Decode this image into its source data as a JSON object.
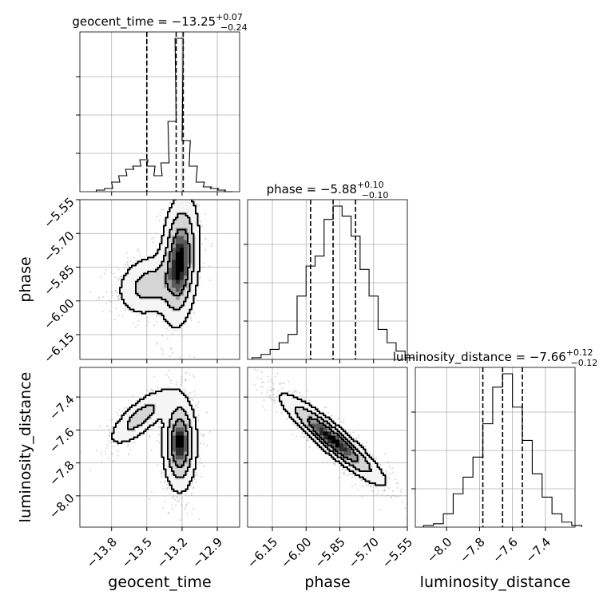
{
  "chart_data": {
    "type": "corner",
    "parameters": [
      {
        "name": "geocent_time",
        "median": -13.25,
        "plus": "0.07",
        "minus": "0.24",
        "title_main": "geocent_time = −13.25",
        "title_sup": "+0.07",
        "title_sub": "−0.24",
        "range": [
          -14.07,
          -12.71
        ],
        "ticks": [
          -13.8,
          -13.5,
          -13.2,
          -12.9
        ],
        "tick_labels": [
          "−13.8",
          "−13.5",
          "−13.2",
          "−12.9"
        ],
        "quantile_lines": [
          -13.5,
          -13.25,
          -13.19
        ],
        "axis_label": "geocent_time"
      },
      {
        "name": "phase",
        "median": -5.88,
        "plus": "0.10",
        "minus": "0.10",
        "title_main": "phase = −5.88",
        "title_sup": "+0.10",
        "title_sub": "−0.10",
        "range": [
          -6.26,
          -5.55
        ],
        "ticks": [
          -6.15,
          -6.0,
          -5.85,
          -5.7,
          -5.55
        ],
        "tick_labels": [
          "−6.15",
          "−6.00",
          "−5.85",
          "−5.70",
          "−5.55"
        ],
        "quantile_lines": [
          -5.98,
          -5.88,
          -5.78
        ],
        "axis_label": "phase"
      },
      {
        "name": "luminosity_distance",
        "median": -7.66,
        "plus": "0.12",
        "minus": "0.12",
        "title_main": "luminosity_distance = −7.66",
        "title_sup": "+0.12",
        "title_sub": "−0.12",
        "range": [
          -8.19,
          -7.22
        ],
        "ticks": [
          -8.0,
          -7.8,
          -7.6,
          -7.4
        ],
        "tick_labels": [
          "−8.0",
          "−7.8",
          "−7.6",
          "−7.4"
        ],
        "quantile_lines": [
          -7.78,
          -7.66,
          -7.54
        ],
        "axis_label": "luminosity_distance"
      }
    ],
    "histograms": [
      {
        "param": "geocent_time",
        "bins": [
          -13.93,
          -13.86,
          -13.8,
          -13.74,
          -13.68,
          -13.62,
          -13.56,
          -13.5,
          -13.44,
          -13.38,
          -13.32,
          -13.26,
          -13.2,
          -13.14,
          -13.08,
          -13.02,
          -12.96,
          -12.9,
          -12.84
        ],
        "counts": [
          0.01,
          0.02,
          0.06,
          0.1,
          0.14,
          0.16,
          0.2,
          0.16,
          0.1,
          0.18,
          0.44,
          0.96,
          0.32,
          0.16,
          0.06,
          0.03,
          0.02,
          0.01,
          0
        ]
      },
      {
        "param": "phase",
        "bins": [
          -6.24,
          -6.2,
          -6.16,
          -6.12,
          -6.08,
          -6.04,
          -6.0,
          -5.96,
          -5.92,
          -5.88,
          -5.84,
          -5.8,
          -5.76,
          -5.72,
          -5.68,
          -5.64,
          -5.6,
          -5.56
        ],
        "counts": [
          0.01,
          0.03,
          0.06,
          0.1,
          0.15,
          0.38,
          0.56,
          0.62,
          0.84,
          0.92,
          0.86,
          0.74,
          0.54,
          0.38,
          0.18,
          0.1,
          0.05,
          0.01
        ]
      },
      {
        "param": "luminosity_distance",
        "bins": [
          -8.14,
          -8.08,
          -8.02,
          -7.96,
          -7.9,
          -7.84,
          -7.78,
          -7.72,
          -7.66,
          -7.6,
          -7.54,
          -7.48,
          -7.42,
          -7.36,
          -7.3,
          -7.24
        ],
        "counts": [
          0.01,
          0.02,
          0.08,
          0.2,
          0.3,
          0.42,
          0.62,
          0.84,
          0.92,
          0.72,
          0.52,
          0.32,
          0.18,
          0.08,
          0.03,
          0.01
        ]
      }
    ],
    "scatter_2d": [
      {
        "x": "geocent_time",
        "y": "phase",
        "blobs": [
          {
            "cx": -13.22,
            "cy": -5.82,
            "sx": 0.08,
            "sy": 0.14,
            "rho": 0.2,
            "n": 800,
            "w": 1.0
          },
          {
            "cx": -13.48,
            "cy": -5.93,
            "sx": 0.14,
            "sy": 0.07,
            "rho": 0.2,
            "n": 420,
            "w": 0.45
          }
        ]
      },
      {
        "x": "geocent_time",
        "y": "luminosity_distance",
        "blobs": [
          {
            "cx": -13.22,
            "cy": -7.68,
            "sx": 0.07,
            "sy": 0.14,
            "rho": 0.0,
            "n": 800,
            "w": 1.0
          },
          {
            "cx": -13.55,
            "cy": -7.52,
            "sx": 0.14,
            "sy": 0.09,
            "rho": 0.75,
            "n": 420,
            "w": 0.45
          }
        ]
      },
      {
        "x": "phase",
        "y": "luminosity_distance",
        "blobs": [
          {
            "cx": -5.88,
            "cy": -7.66,
            "sx": 0.11,
            "sy": 0.13,
            "rho": -0.92,
            "n": 1200,
            "w": 1.0
          }
        ]
      }
    ],
    "grid": true,
    "line_color": "#000000",
    "point_color": "#888888"
  }
}
